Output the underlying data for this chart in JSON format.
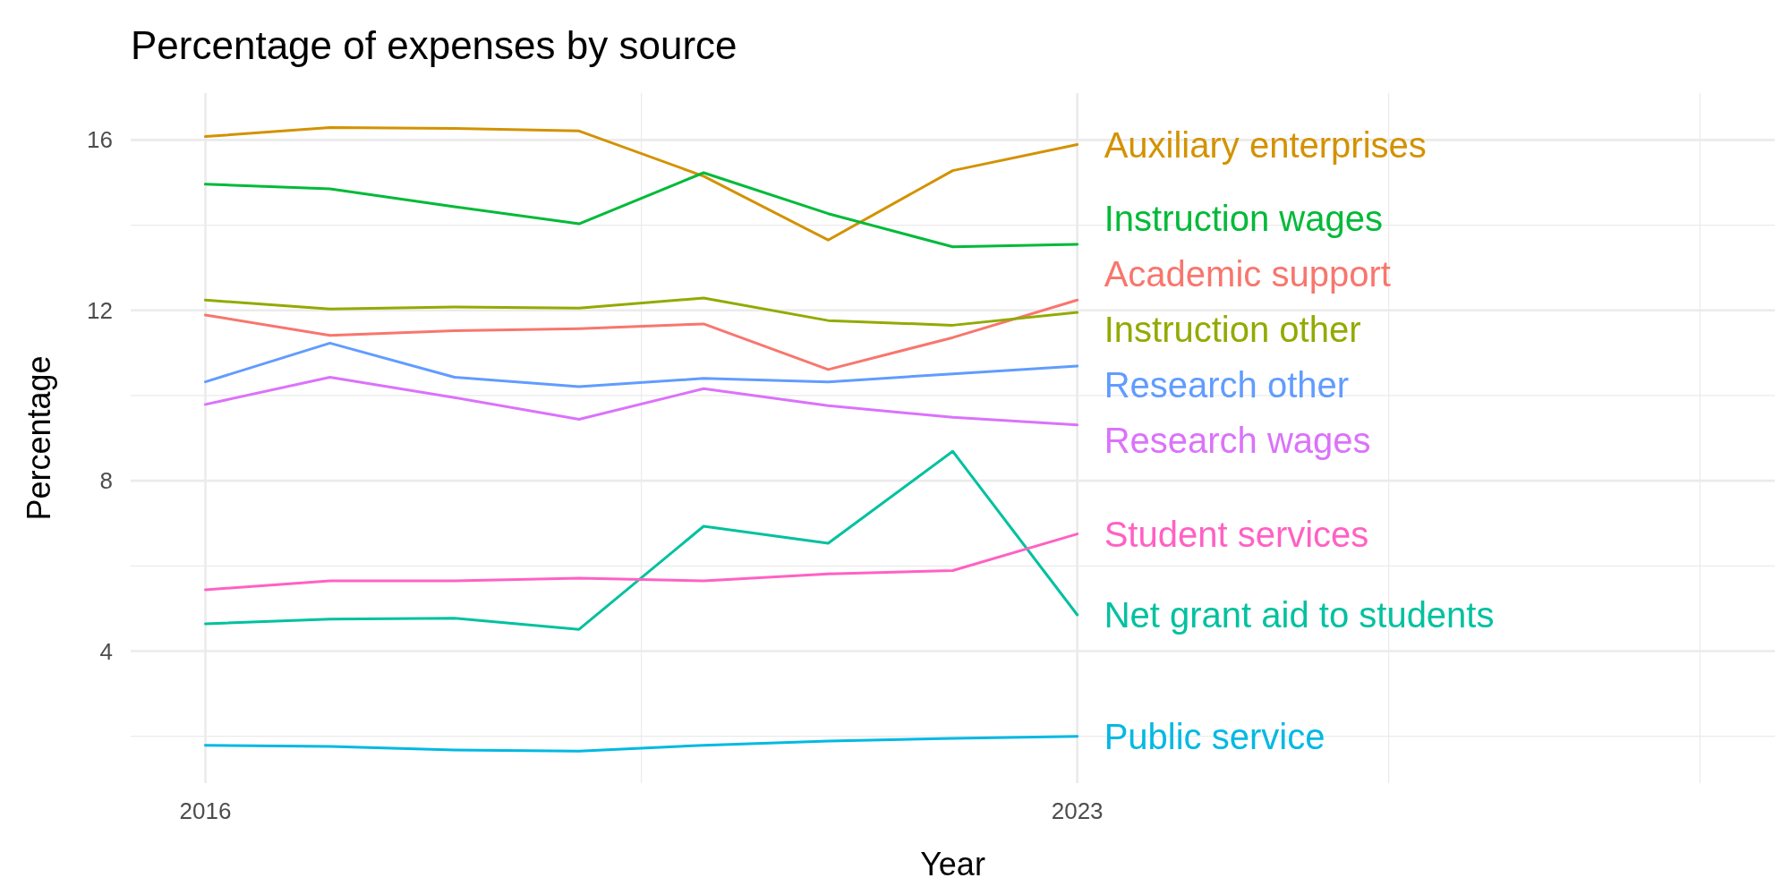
{
  "chart_data": {
    "type": "line",
    "title": "Percentage of expenses by source",
    "xlabel": "Year",
    "ylabel": "Percentage",
    "x": [
      2016,
      2017,
      2018,
      2019,
      2020,
      2021,
      2022,
      2023
    ],
    "xlim": [
      2015.4,
      2028.6
    ],
    "xticks": [
      2016,
      {
        "value": 2019.5,
        "label": null
      },
      2023,
      {
        "value": 2025.5,
        "label": null
      },
      {
        "value": 2028,
        "label": null
      }
    ],
    "ylim": [
      0.9,
      17.1
    ],
    "yticks": [
      {
        "value": 2,
        "label": null
      },
      4,
      {
        "value": 6,
        "label": null
      },
      8,
      {
        "value": 10,
        "label": null
      },
      12,
      {
        "value": 14,
        "label": null
      },
      16
    ],
    "grid": true,
    "series": [
      {
        "name": "Academic support",
        "color": "#f8766d",
        "values": [
          11.89,
          11.41,
          11.52,
          11.57,
          11.68,
          10.61,
          11.36,
          12.24
        ]
      },
      {
        "name": "Auxiliary enterprises",
        "color": "#d39200",
        "values": [
          16.08,
          16.29,
          16.27,
          16.21,
          15.15,
          13.65,
          15.28,
          15.89
        ]
      },
      {
        "name": "Instruction other",
        "color": "#93aa00",
        "values": [
          12.24,
          12.03,
          12.08,
          12.05,
          12.29,
          11.76,
          11.65,
          11.95
        ]
      },
      {
        "name": "Instruction wages",
        "color": "#00ba38",
        "values": [
          14.96,
          14.85,
          14.43,
          14.03,
          15.23,
          14.27,
          13.49,
          13.55
        ]
      },
      {
        "name": "Net grant aid to students",
        "color": "#00c19f",
        "values": [
          4.64,
          4.75,
          4.77,
          4.51,
          6.93,
          6.53,
          8.69,
          4.85
        ]
      },
      {
        "name": "Public service",
        "color": "#00b9e3",
        "values": [
          1.79,
          1.76,
          1.68,
          1.65,
          1.79,
          1.89,
          1.95,
          2.0
        ]
      },
      {
        "name": "Research other",
        "color": "#619cff",
        "values": [
          10.32,
          11.23,
          10.43,
          10.21,
          10.4,
          10.32,
          10.51,
          10.69
        ]
      },
      {
        "name": "Research wages",
        "color": "#db72fb",
        "values": [
          9.79,
          10.43,
          9.95,
          9.44,
          10.16,
          9.76,
          9.49,
          9.31
        ]
      },
      {
        "name": "Student services",
        "color": "#ff61c3",
        "values": [
          5.44,
          5.65,
          5.65,
          5.71,
          5.65,
          5.81,
          5.89,
          6.75
        ]
      }
    ]
  }
}
